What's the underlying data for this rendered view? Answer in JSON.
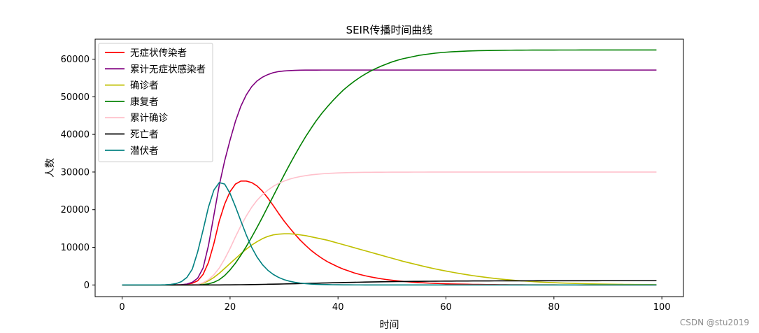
{
  "watermark": "CSDN @stu2019",
  "chart_data": {
    "type": "line",
    "title": "SEIR传播时间曲线",
    "xlabel": "时间",
    "ylabel": "人数",
    "xlim": [
      -5,
      104
    ],
    "ylim": [
      -3100,
      65300
    ],
    "xticks": [
      0,
      20,
      40,
      60,
      80,
      100
    ],
    "yticks": [
      0,
      10000,
      20000,
      30000,
      40000,
      50000,
      60000
    ],
    "grid": false,
    "legend_position": "upper-left",
    "x": [
      0,
      1,
      2,
      3,
      4,
      5,
      6,
      7,
      8,
      9,
      10,
      11,
      12,
      13,
      14,
      15,
      16,
      17,
      18,
      19,
      20,
      21,
      22,
      23,
      24,
      25,
      26,
      27,
      28,
      29,
      30,
      31,
      32,
      33,
      34,
      35,
      36,
      37,
      38,
      39,
      40,
      41,
      42,
      43,
      44,
      45,
      46,
      47,
      48,
      49,
      50,
      51,
      52,
      53,
      54,
      55,
      56,
      57,
      58,
      59,
      60,
      61,
      62,
      63,
      64,
      65,
      66,
      67,
      68,
      69,
      70,
      71,
      72,
      73,
      74,
      75,
      76,
      77,
      78,
      79,
      80,
      81,
      82,
      83,
      84,
      85,
      86,
      87,
      88,
      89,
      90,
      91,
      92,
      93,
      94,
      95,
      96,
      97,
      98,
      99
    ],
    "series": [
      {
        "name": "无症状传染者",
        "color": "#ff0000",
        "values": [
          0,
          0,
          0,
          0,
          0,
          0,
          0,
          0,
          0,
          0,
          20,
          60,
          170,
          450,
          1100,
          2800,
          6000,
          11000,
          17000,
          21500,
          24800,
          26800,
          27600,
          27600,
          27200,
          26300,
          24900,
          23100,
          21100,
          19000,
          17000,
          15200,
          13500,
          11900,
          10500,
          9200,
          8100,
          7100,
          6200,
          5500,
          4800,
          4200,
          3700,
          3200,
          2800,
          2450,
          2150,
          1880,
          1640,
          1430,
          1250,
          1090,
          950,
          830,
          720,
          630,
          550,
          480,
          420,
          360,
          310,
          270,
          235,
          205,
          180,
          155,
          135,
          118,
          102,
          89,
          77,
          67,
          58,
          50,
          44,
          38,
          33,
          29,
          25,
          22,
          19,
          16,
          14,
          12,
          11,
          10,
          9,
          8,
          7,
          6,
          5,
          5,
          4,
          4,
          3,
          3,
          2,
          2,
          2,
          2
        ]
      },
      {
        "name": "累计无症状感染者",
        "color": "#800080",
        "values": [
          0,
          0,
          0,
          0,
          0,
          0,
          0,
          0,
          0,
          0,
          20,
          70,
          240,
          700,
          1800,
          4500,
          10500,
          18500,
          26500,
          33000,
          38500,
          43500,
          47500,
          50500,
          52700,
          54200,
          55200,
          55900,
          56400,
          56700,
          56850,
          56950,
          57020,
          57060,
          57080,
          57090,
          57095,
          57098,
          57100,
          57100,
          57100,
          57100,
          57100,
          57100,
          57100,
          57100,
          57100,
          57100,
          57100,
          57100,
          57100,
          57100,
          57100,
          57100,
          57100,
          57100,
          57100,
          57100,
          57100,
          57100,
          57100,
          57100,
          57100,
          57100,
          57100,
          57100,
          57100,
          57100,
          57100,
          57100,
          57100,
          57100,
          57100,
          57100,
          57100,
          57100,
          57100,
          57100,
          57100,
          57100,
          57100,
          57100,
          57100,
          57100,
          57100,
          57100,
          57100,
          57100,
          57100,
          57100,
          57100,
          57100,
          57100,
          57100,
          57100,
          57100,
          57100,
          57100,
          57100,
          57100
        ]
      },
      {
        "name": "确诊者",
        "color": "#bfbf00",
        "values": [
          0,
          0,
          0,
          0,
          0,
          0,
          0,
          0,
          0,
          0,
          0,
          0,
          10,
          50,
          150,
          450,
          1100,
          2000,
          3100,
          4400,
          5700,
          7000,
          8300,
          9500,
          10600,
          11500,
          12300,
          12900,
          13300,
          13500,
          13600,
          13600,
          13500,
          13300,
          13100,
          12800,
          12500,
          12200,
          11900,
          11500,
          11100,
          10700,
          10300,
          9900,
          9500,
          9100,
          8700,
          8300,
          7900,
          7500,
          7100,
          6700,
          6300,
          5950,
          5600,
          5250,
          4900,
          4580,
          4270,
          3980,
          3700,
          3430,
          3170,
          2930,
          2700,
          2480,
          2280,
          2090,
          1910,
          1740,
          1590,
          1450,
          1320,
          1200,
          1090,
          990,
          900,
          810,
          730,
          660,
          600,
          540,
          490,
          440,
          400,
          360,
          320,
          290,
          260,
          235,
          210,
          190,
          170,
          155,
          140,
          125,
          112,
          100,
          90,
          80
        ]
      },
      {
        "name": "康复者",
        "color": "#008000",
        "values": [
          0,
          0,
          0,
          0,
          0,
          0,
          0,
          0,
          0,
          0,
          0,
          0,
          0,
          10,
          40,
          100,
          300,
          700,
          1400,
          2500,
          4000,
          5800,
          7900,
          10200,
          12700,
          15300,
          18000,
          20800,
          23600,
          26400,
          29200,
          31900,
          34500,
          37000,
          39400,
          41600,
          43700,
          45600,
          47300,
          48900,
          50400,
          51800,
          53000,
          54100,
          55100,
          56000,
          56800,
          57500,
          58150,
          58700,
          59250,
          59700,
          60100,
          60400,
          60700,
          61000,
          61200,
          61400,
          61580,
          61720,
          61840,
          61940,
          62020,
          62090,
          62150,
          62200,
          62240,
          62270,
          62300,
          62320,
          62340,
          62355,
          62370,
          62380,
          62390,
          62395,
          62400,
          62405,
          62410,
          62413,
          62415,
          62417,
          62419,
          62420,
          62421,
          62422,
          62423,
          62424,
          62425,
          62425,
          62426,
          62426,
          62427,
          62427,
          62428,
          62428,
          62428,
          62429,
          62429,
          62430
        ]
      },
      {
        "name": "累计确诊",
        "color": "#ffc0cb",
        "values": [
          0,
          0,
          0,
          0,
          0,
          0,
          0,
          0,
          0,
          0,
          0,
          0,
          10,
          60,
          200,
          600,
          1400,
          2700,
          4500,
          6900,
          9700,
          12800,
          15700,
          18300,
          20600,
          22500,
          24000,
          25200,
          26200,
          27000,
          27600,
          28100,
          28500,
          28800,
          29050,
          29250,
          29400,
          29520,
          29620,
          29700,
          29760,
          29810,
          29850,
          29880,
          29900,
          29920,
          29935,
          29945,
          29955,
          29962,
          29968,
          29972,
          29976,
          29979,
          29982,
          29984,
          29986,
          29988,
          29989,
          29990,
          29991,
          29992,
          29993,
          29994,
          29994,
          29995,
          29995,
          29996,
          29996,
          29996,
          29997,
          29997,
          29997,
          29997,
          29998,
          29998,
          29998,
          29998,
          29998,
          29998,
          29999,
          29999,
          29999,
          29999,
          29999,
          29999,
          29999,
          29999,
          29999,
          29999,
          30000,
          30000,
          30000,
          30000,
          30000,
          30000,
          30000,
          30000,
          30000,
          30000
        ]
      },
      {
        "name": "死亡者",
        "color": "#000000",
        "values": [
          0,
          0,
          0,
          0,
          0,
          0,
          0,
          0,
          0,
          0,
          0,
          0,
          0,
          0,
          0,
          0,
          0,
          5,
          10,
          20,
          30,
          45,
          60,
          80,
          100,
          125,
          150,
          180,
          210,
          240,
          270,
          300,
          335,
          370,
          405,
          440,
          475,
          510,
          545,
          580,
          612,
          644,
          675,
          705,
          735,
          762,
          788,
          812,
          835,
          857,
          877,
          896,
          914,
          931,
          947,
          962,
          975,
          988,
          1000,
          1011,
          1021,
          1030,
          1039,
          1047,
          1054,
          1061,
          1067,
          1073,
          1078,
          1083,
          1087,
          1091,
          1095,
          1098,
          1101,
          1104,
          1107,
          1109,
          1111,
          1113,
          1115,
          1117,
          1118,
          1120,
          1121,
          1122,
          1123,
          1124,
          1125,
          1126,
          1127,
          1127,
          1128,
          1128,
          1129,
          1129,
          1130,
          1130,
          1130,
          1131
        ]
      },
      {
        "name": "潜伏者",
        "color": "#008080",
        "values": [
          0,
          0,
          0,
          0,
          0,
          0,
          0,
          0,
          50,
          150,
          350,
          900,
          2000,
          4200,
          8800,
          14600,
          20700,
          25200,
          27200,
          26800,
          24300,
          20800,
          17000,
          13300,
          10000,
          7400,
          5400,
          3900,
          2800,
          2000,
          1400,
          1000,
          700,
          500,
          350,
          240,
          170,
          120,
          85,
          60,
          42,
          30,
          21,
          15,
          11,
          8,
          6,
          4,
          3,
          2,
          2,
          1,
          1,
          1,
          0,
          0,
          0,
          0,
          0,
          0,
          0,
          0,
          0,
          0,
          0,
          0,
          0,
          0,
          0,
          0,
          0,
          0,
          0,
          0,
          0,
          0,
          0,
          0,
          0,
          0,
          0,
          0,
          0,
          0,
          0,
          0,
          0,
          0,
          0,
          0,
          0,
          0,
          0,
          0,
          0,
          0,
          0,
          0,
          0,
          0
        ]
      }
    ]
  }
}
